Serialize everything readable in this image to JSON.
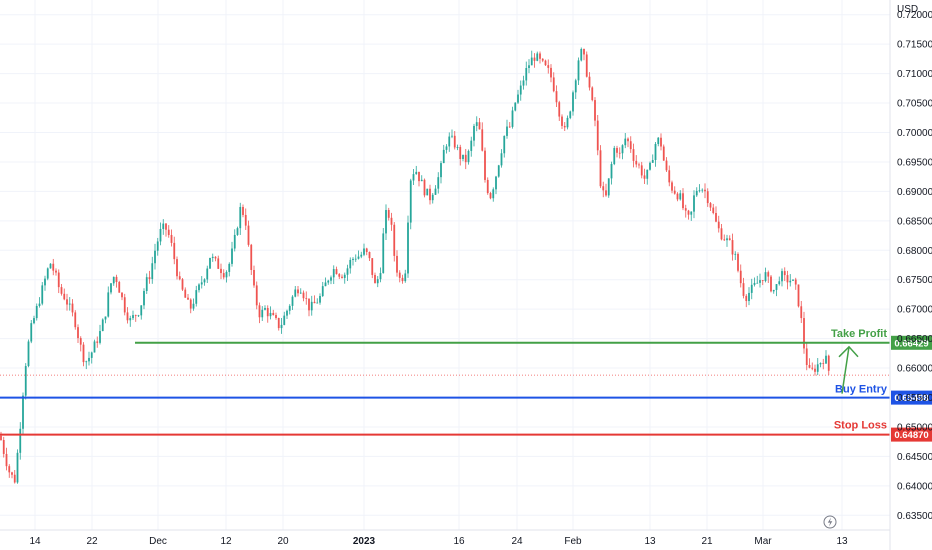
{
  "chart_data": {
    "type": "candlestick",
    "currency": "USD",
    "y_axis": {
      "range": [
        0.6325,
        0.7225
      ],
      "ticks": [
        "0.72000",
        "0.71500",
        "0.71000",
        "0.70500",
        "0.70000",
        "0.69500",
        "0.69000",
        "0.68500",
        "0.68000",
        "0.67500",
        "0.67000",
        "0.66500",
        "0.66000",
        "0.65500",
        "0.65000",
        "0.64500",
        "0.64000",
        "0.63500"
      ]
    },
    "x_axis": {
      "ticks": [
        "14",
        "22",
        "Dec",
        "12",
        "20",
        "2023",
        "16",
        "24",
        "Feb",
        "13",
        "21",
        "Mar",
        "13"
      ],
      "bold_ticks": [
        "2023"
      ]
    },
    "levels": [
      {
        "name": "Take Profit",
        "value": 0.66429,
        "tag": "0.66429",
        "color": "#43a047"
      },
      {
        "name": "Buy Entry",
        "value": 0.65498,
        "tag": "0.65498",
        "color": "#1e53e5"
      },
      {
        "name": "Stop Loss",
        "value": 0.6487,
        "tag": "0.64870",
        "color": "#e53935"
      }
    ],
    "current_price": 0.6588,
    "colors": {
      "up": "#26a69a",
      "down": "#ef5350",
      "grid": "#f0f3fa",
      "axis_text": "#131722"
    },
    "price_path": [
      [
        0,
        0.6485
      ],
      [
        5,
        0.645
      ],
      [
        10,
        0.642
      ],
      [
        15,
        0.641
      ],
      [
        20,
        0.65
      ],
      [
        25,
        0.66
      ],
      [
        30,
        0.666
      ],
      [
        35,
        0.669
      ],
      [
        40,
        0.672
      ],
      [
        45,
        0.675
      ],
      [
        50,
        0.678
      ],
      [
        55,
        0.676
      ],
      [
        60,
        0.673
      ],
      [
        65,
        0.672
      ],
      [
        70,
        0.67
      ],
      [
        75,
        0.668
      ],
      [
        80,
        0.664
      ],
      [
        85,
        0.661
      ],
      [
        90,
        0.662
      ],
      [
        95,
        0.664
      ],
      [
        100,
        0.666
      ],
      [
        105,
        0.669
      ],
      [
        110,
        0.674
      ],
      [
        115,
        0.676
      ],
      [
        120,
        0.673
      ],
      [
        125,
        0.67
      ],
      [
        130,
        0.668
      ],
      [
        135,
        0.669
      ],
      [
        140,
        0.67
      ],
      [
        145,
        0.674
      ],
      [
        150,
        0.676
      ],
      [
        155,
        0.68
      ],
      [
        160,
        0.683
      ],
      [
        165,
        0.684
      ],
      [
        170,
        0.682
      ],
      [
        175,
        0.678
      ],
      [
        180,
        0.674
      ],
      [
        185,
        0.672
      ],
      [
        190,
        0.67
      ],
      [
        195,
        0.672
      ],
      [
        200,
        0.674
      ],
      [
        205,
        0.676
      ],
      [
        210,
        0.679
      ],
      [
        215,
        0.678
      ],
      [
        220,
        0.677
      ],
      [
        225,
        0.676
      ],
      [
        230,
        0.678
      ],
      [
        235,
        0.682
      ],
      [
        240,
        0.687
      ],
      [
        245,
        0.686
      ],
      [
        250,
        0.678
      ],
      [
        255,
        0.672
      ],
      [
        260,
        0.669
      ],
      [
        265,
        0.67
      ],
      [
        270,
        0.669
      ],
      [
        275,
        0.668
      ],
      [
        280,
        0.667
      ],
      [
        285,
        0.669
      ],
      [
        290,
        0.671
      ],
      [
        295,
        0.673
      ],
      [
        300,
        0.674
      ],
      [
        305,
        0.672
      ],
      [
        310,
        0.67
      ],
      [
        315,
        0.671
      ],
      [
        320,
        0.672
      ],
      [
        325,
        0.674
      ],
      [
        330,
        0.676
      ],
      [
        335,
        0.677
      ],
      [
        340,
        0.676
      ],
      [
        345,
        0.676
      ],
      [
        350,
        0.678
      ],
      [
        355,
        0.679
      ],
      [
        360,
        0.679
      ],
      [
        365,
        0.68
      ],
      [
        370,
        0.678
      ],
      [
        375,
        0.674
      ],
      [
        380,
        0.676
      ],
      [
        385,
        0.686
      ],
      [
        390,
        0.686
      ],
      [
        395,
        0.678
      ],
      [
        400,
        0.675
      ],
      [
        405,
        0.676
      ],
      [
        410,
        0.692
      ],
      [
        415,
        0.694
      ],
      [
        420,
        0.692
      ],
      [
        425,
        0.69
      ],
      [
        430,
        0.689
      ],
      [
        435,
        0.691
      ],
      [
        440,
        0.693
      ],
      [
        445,
        0.698
      ],
      [
        450,
        0.699
      ],
      [
        455,
        0.698
      ],
      [
        460,
        0.696
      ],
      [
        465,
        0.695
      ],
      [
        470,
        0.697
      ],
      [
        475,
        0.702
      ],
      [
        480,
        0.7
      ],
      [
        485,
        0.692
      ],
      [
        490,
        0.689
      ],
      [
        495,
        0.692
      ],
      [
        500,
        0.696
      ],
      [
        505,
        0.7
      ],
      [
        510,
        0.701
      ],
      [
        515,
        0.705
      ],
      [
        520,
        0.707
      ],
      [
        525,
        0.71
      ],
      [
        530,
        0.712
      ],
      [
        535,
        0.713
      ],
      [
        540,
        0.712
      ],
      [
        545,
        0.711
      ],
      [
        550,
        0.71
      ],
      [
        555,
        0.707
      ],
      [
        560,
        0.703
      ],
      [
        565,
        0.7
      ],
      [
        570,
        0.704
      ],
      [
        575,
        0.709
      ],
      [
        580,
        0.714
      ],
      [
        585,
        0.712
      ],
      [
        590,
        0.707
      ],
      [
        595,
        0.702
      ],
      [
        600,
        0.692
      ],
      [
        605,
        0.688
      ],
      [
        610,
        0.693
      ],
      [
        615,
        0.698
      ],
      [
        620,
        0.696
      ],
      [
        625,
        0.699
      ],
      [
        630,
        0.698
      ],
      [
        635,
        0.695
      ],
      [
        640,
        0.694
      ],
      [
        645,
        0.692
      ],
      [
        650,
        0.694
      ],
      [
        655,
        0.698
      ],
      [
        660,
        0.699
      ],
      [
        665,
        0.694
      ],
      [
        670,
        0.691
      ],
      [
        675,
        0.69
      ],
      [
        680,
        0.689
      ],
      [
        685,
        0.686
      ],
      [
        690,
        0.685
      ],
      [
        695,
        0.69
      ],
      [
        700,
        0.691
      ],
      [
        705,
        0.69
      ],
      [
        710,
        0.688
      ],
      [
        715,
        0.685
      ],
      [
        720,
        0.683
      ],
      [
        725,
        0.682
      ],
      [
        730,
        0.681
      ],
      [
        735,
        0.679
      ],
      [
        740,
        0.675
      ],
      [
        745,
        0.672
      ],
      [
        750,
        0.673
      ],
      [
        755,
        0.674
      ],
      [
        760,
        0.675
      ],
      [
        765,
        0.676
      ],
      [
        770,
        0.674
      ],
      [
        775,
        0.673
      ],
      [
        780,
        0.676
      ],
      [
        785,
        0.675
      ],
      [
        790,
        0.675
      ],
      [
        795,
        0.674
      ],
      [
        800,
        0.67
      ],
      [
        805,
        0.662
      ],
      [
        810,
        0.659
      ],
      [
        815,
        0.66
      ],
      [
        820,
        0.661
      ],
      [
        825,
        0.662
      ],
      [
        830,
        0.6588
      ]
    ]
  }
}
